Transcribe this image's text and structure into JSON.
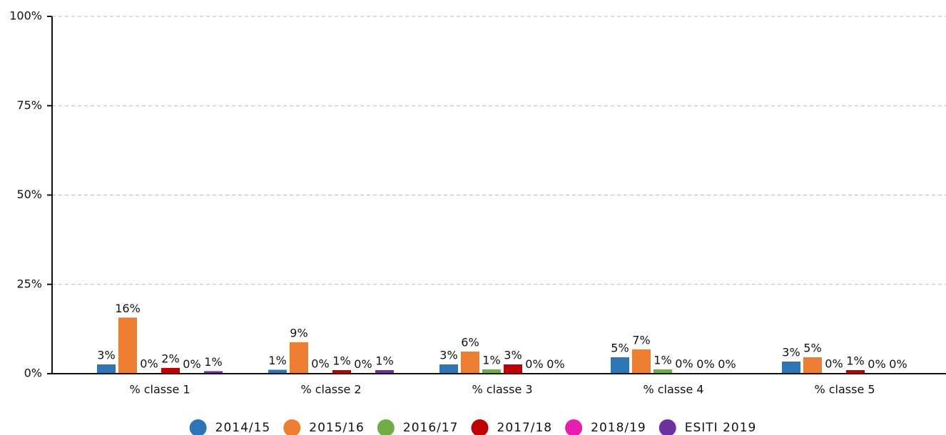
{
  "chart_data": {
    "type": "bar",
    "categories": [
      "% classe 1",
      "% classe 2",
      "% classe 3",
      "% classe 4",
      "% classe 5"
    ],
    "series": [
      {
        "name": "2014/15",
        "color": "#2e75b6",
        "values": [
          2.6,
          1.1,
          2.6,
          4.6,
          3.4
        ],
        "value_labels": [
          "3%",
          "1%",
          "3%",
          "5%",
          "3%"
        ]
      },
      {
        "name": "2015/16",
        "color": "#ed7d31",
        "values": [
          15.7,
          8.8,
          6.2,
          6.8,
          4.6
        ],
        "value_labels": [
          "16%",
          "9%",
          "6%",
          "7%",
          "5%"
        ]
      },
      {
        "name": "2016/17",
        "color": "#70ad47",
        "values": [
          0.2,
          0.2,
          1.2,
          1.2,
          0.2
        ],
        "value_labels": [
          "0%",
          "0%",
          "1%",
          "1%",
          "0%"
        ]
      },
      {
        "name": "2017/18",
        "color": "#c00000",
        "values": [
          1.6,
          1.0,
          2.6,
          0.2,
          1.0
        ],
        "value_labels": [
          "2%",
          "1%",
          "3%",
          "0%",
          "1%"
        ]
      },
      {
        "name": "2018/19",
        "color": "#e81eb0",
        "values": [
          0.1,
          0.1,
          0.1,
          0.1,
          0.1
        ],
        "value_labels": [
          "0%",
          "0%",
          "0%",
          "0%",
          "0%"
        ]
      },
      {
        "name": "ESITI 2019",
        "color": "#7030a0",
        "values": [
          0.7,
          1.0,
          0.1,
          0.1,
          0.1
        ],
        "value_labels": [
          "1%",
          "1%",
          "0%",
          "0%",
          "0%"
        ]
      }
    ],
    "ylim": [
      0,
      100
    ],
    "yticks": [
      {
        "value": 0,
        "label": "0%"
      },
      {
        "value": 25,
        "label": "25%"
      },
      {
        "value": 50,
        "label": "50%"
      },
      {
        "value": 75,
        "label": "75%"
      },
      {
        "value": 100,
        "label": "100%"
      }
    ],
    "grid": true,
    "legend": "bottom"
  }
}
